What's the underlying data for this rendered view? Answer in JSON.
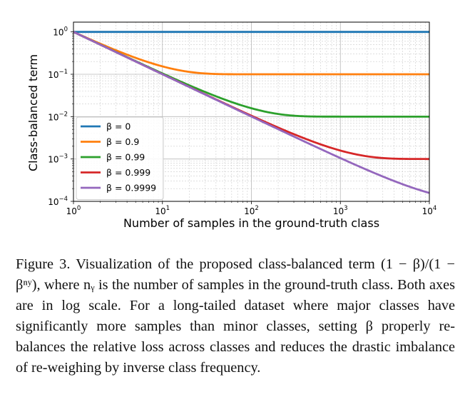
{
  "chart_data": {
    "type": "line",
    "xscale": "log",
    "yscale": "log",
    "xlim": [
      1,
      10000
    ],
    "ylim": [
      0.0001,
      1.7
    ],
    "xlabel": "Number of samples in the ground-truth class",
    "ylabel": "Class-balanced term",
    "x_ticks": [
      {
        "value": 1,
        "base": "10",
        "exp": "0"
      },
      {
        "value": 10,
        "base": "10",
        "exp": "1"
      },
      {
        "value": 100,
        "base": "10",
        "exp": "2"
      },
      {
        "value": 1000,
        "base": "10",
        "exp": "3"
      },
      {
        "value": 10000,
        "base": "10",
        "exp": "4"
      }
    ],
    "y_ticks": [
      {
        "value": 1,
        "base": "10",
        "exp": "0"
      },
      {
        "value": 0.1,
        "base": "10",
        "exp": "−1"
      },
      {
        "value": 0.01,
        "base": "10",
        "exp": "−2"
      },
      {
        "value": 0.001,
        "base": "10",
        "exp": "−3"
      },
      {
        "value": 0.0001,
        "base": "10",
        "exp": "−4"
      }
    ],
    "grid": true,
    "legend_position": "lower-left",
    "series": [
      {
        "name": "β = 0",
        "beta": 0,
        "color": "#1f77b4",
        "x": [
          1,
          10,
          100,
          1000,
          10000
        ],
        "y": [
          1,
          1,
          1,
          1,
          1
        ]
      },
      {
        "name": "β = 0.9",
        "beta": 0.9,
        "color": "#ff7f0e",
        "x": [
          1,
          10,
          100,
          1000,
          10000
        ],
        "y": [
          1,
          0.1535,
          0.1,
          0.1,
          0.1
        ]
      },
      {
        "name": "β = 0.99",
        "beta": 0.99,
        "color": "#2ca02c",
        "x": [
          1,
          10,
          100,
          1000,
          10000
        ],
        "y": [
          1,
          0.1046,
          0.01582,
          0.01,
          0.01
        ]
      },
      {
        "name": "β = 0.999",
        "beta": 0.999,
        "color": "#d62728",
        "x": [
          1,
          10,
          100,
          1000,
          10000
        ],
        "y": [
          1,
          0.1005,
          0.01051,
          0.001582,
          0.001
        ]
      },
      {
        "name": "β = 0.9999",
        "beta": 0.9999,
        "color": "#9467bd",
        "x": [
          1,
          10,
          100,
          1000,
          10000
        ],
        "y": [
          1,
          0.1,
          0.01005,
          0.001051,
          0.0001582
        ]
      }
    ]
  },
  "caption": {
    "label": "Figure 3.",
    "text": "Visualization of the proposed class-balanced term (1 − β)/(1 − βⁿʸ), where nᵧ is the number of samples in the ground-truth class. Both axes are in log scale. For a long-tailed dataset where major classes have significantly more samples than minor classes, setting β properly re-balances the relative loss across classes and reduces the drastic imbalance of re-weighing by inverse class frequency."
  }
}
